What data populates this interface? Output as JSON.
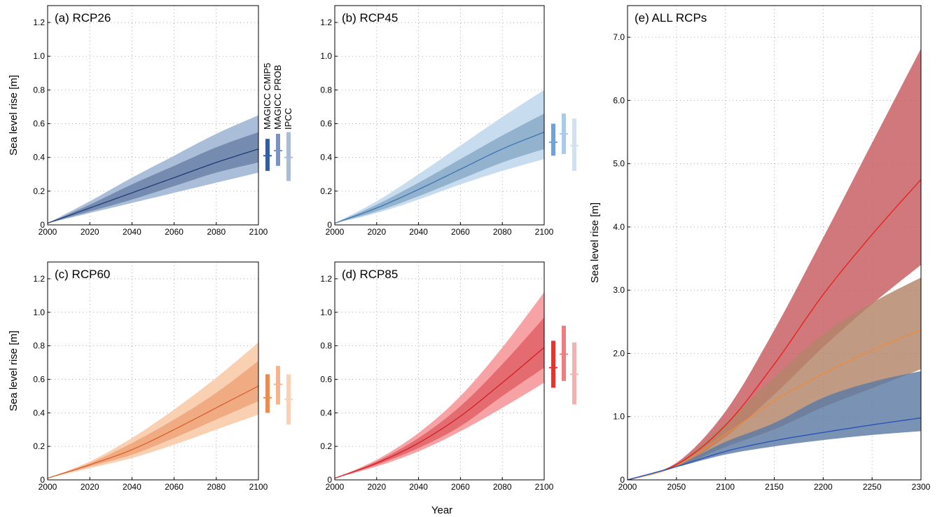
{
  "figure": {
    "shared_xlabel": "Year",
    "ylabel": "Sea level rise [m]",
    "legend_labels": [
      "MAGICC CMIP5",
      "MAGICC PROB",
      "IPCC"
    ]
  },
  "chart_data": [
    {
      "type": "area",
      "title": "(a) RCP26",
      "ylabel": "Sea level rise [m]",
      "xlim": [
        2000,
        2100
      ],
      "ylim": [
        0,
        1.3
      ],
      "xticks": [
        2000,
        2020,
        2040,
        2060,
        2080,
        2100
      ],
      "yticks": [
        0,
        0.2,
        0.4,
        0.6,
        0.8,
        1.0,
        1.2
      ],
      "grid": true,
      "colors": {
        "outer": "#abbed9",
        "inner": "#6b82a8",
        "median": "#1f3b78"
      },
      "x": [
        2000,
        2020,
        2040,
        2060,
        2080,
        2100
      ],
      "median": [
        0.01,
        0.1,
        0.19,
        0.28,
        0.37,
        0.45
      ],
      "inner_band": {
        "low": [
          0.01,
          0.08,
          0.15,
          0.23,
          0.31,
          0.37
        ],
        "high": [
          0.01,
          0.12,
          0.24,
          0.35,
          0.46,
          0.55
        ]
      },
      "outer_band": {
        "low": [
          0.01,
          0.07,
          0.13,
          0.19,
          0.25,
          0.31
        ],
        "high": [
          0.01,
          0.14,
          0.28,
          0.41,
          0.54,
          0.65
        ]
      },
      "bars": [
        {
          "label": "MAGICC CMIP5",
          "median": 0.41,
          "low": 0.32,
          "high": 0.51,
          "color": "#2e5ea6"
        },
        {
          "label": "MAGICC PROB",
          "median": 0.44,
          "low": 0.35,
          "high": 0.54,
          "color": "#7a94bf"
        },
        {
          "label": "IPCC",
          "median": 0.4,
          "low": 0.26,
          "high": 0.55,
          "color": "#a9bcd9"
        }
      ]
    },
    {
      "type": "area",
      "title": "(b) RCP45",
      "xlim": [
        2000,
        2100
      ],
      "ylim": [
        0,
        1.3
      ],
      "xticks": [
        2000,
        2020,
        2040,
        2060,
        2080,
        2100
      ],
      "yticks": [
        0,
        0.2,
        0.4,
        0.6,
        0.8,
        1.0,
        1.2
      ],
      "grid": true,
      "colors": {
        "outer": "#c8dcef",
        "inner": "#8aaac8",
        "median": "#3a75b5"
      },
      "x": [
        2000,
        2020,
        2040,
        2060,
        2080,
        2100
      ],
      "median": [
        0.01,
        0.1,
        0.21,
        0.33,
        0.45,
        0.55
      ],
      "inner_band": {
        "low": [
          0.01,
          0.08,
          0.17,
          0.27,
          0.37,
          0.45
        ],
        "high": [
          0.01,
          0.12,
          0.25,
          0.39,
          0.53,
          0.66
        ]
      },
      "outer_band": {
        "low": [
          0.01,
          0.07,
          0.15,
          0.24,
          0.32,
          0.39
        ],
        "high": [
          0.01,
          0.14,
          0.3,
          0.47,
          0.64,
          0.8
        ]
      },
      "bars": [
        {
          "label": "MAGICC CMIP5",
          "median": 0.49,
          "low": 0.41,
          "high": 0.6,
          "color": "#6fa3d6"
        },
        {
          "label": "MAGICC PROB",
          "median": 0.54,
          "low": 0.42,
          "high": 0.66,
          "color": "#a8cbea"
        },
        {
          "label": "IPCC",
          "median": 0.47,
          "low": 0.32,
          "high": 0.63,
          "color": "#cfe1f2"
        }
      ]
    },
    {
      "type": "area",
      "title": "(c) RCP60",
      "ylabel": "Sea level rise [m]",
      "xlim": [
        2000,
        2100
      ],
      "ylim": [
        0,
        1.3
      ],
      "xticks": [
        2000,
        2020,
        2040,
        2060,
        2080,
        2100
      ],
      "yticks": [
        0,
        0.2,
        0.4,
        0.6,
        0.8,
        1.0,
        1.2
      ],
      "grid": true,
      "colors": {
        "outer": "#fad0b3",
        "inner": "#eea57a",
        "median": "#d9602a"
      },
      "x": [
        2000,
        2020,
        2040,
        2060,
        2080,
        2100
      ],
      "median": [
        0.01,
        0.09,
        0.18,
        0.3,
        0.43,
        0.56
      ],
      "inner_band": {
        "low": [
          0.01,
          0.08,
          0.15,
          0.25,
          0.36,
          0.47
        ],
        "high": [
          0.01,
          0.1,
          0.22,
          0.36,
          0.52,
          0.71
        ]
      },
      "outer_band": {
        "low": [
          0.01,
          0.07,
          0.13,
          0.21,
          0.3,
          0.39
        ],
        "high": [
          0.01,
          0.11,
          0.25,
          0.42,
          0.61,
          0.82
        ]
      },
      "bars": [
        {
          "label": "MAGICC CMIP5",
          "median": 0.49,
          "low": 0.4,
          "high": 0.63,
          "color": "#f08a4b"
        },
        {
          "label": "MAGICC PROB",
          "median": 0.57,
          "low": 0.45,
          "high": 0.68,
          "color": "#f7b48c"
        },
        {
          "label": "IPCC",
          "median": 0.48,
          "low": 0.33,
          "high": 0.63,
          "color": "#fbd0b5"
        }
      ]
    },
    {
      "type": "area",
      "title": "(d) RCP85",
      "xlim": [
        2000,
        2100
      ],
      "ylim": [
        0,
        1.3
      ],
      "xticks": [
        2000,
        2020,
        2040,
        2060,
        2080,
        2100
      ],
      "yticks": [
        0,
        0.2,
        0.4,
        0.6,
        0.8,
        1.0,
        1.2
      ],
      "grid": true,
      "colors": {
        "outer": "#f7a3a6",
        "inner": "#e06266",
        "median": "#d21f26"
      },
      "x": [
        2000,
        2020,
        2040,
        2060,
        2080,
        2100
      ],
      "median": [
        0.01,
        0.1,
        0.22,
        0.38,
        0.58,
        0.79
      ],
      "inner_band": {
        "low": [
          0.01,
          0.09,
          0.19,
          0.32,
          0.5,
          0.67
        ],
        "high": [
          0.01,
          0.11,
          0.25,
          0.44,
          0.69,
          0.97
        ]
      },
      "outer_band": {
        "low": [
          0.01,
          0.08,
          0.17,
          0.29,
          0.43,
          0.58
        ],
        "high": [
          0.01,
          0.12,
          0.28,
          0.5,
          0.79,
          1.12
        ]
      },
      "bars": [
        {
          "label": "MAGICC CMIP5",
          "median": 0.67,
          "low": 0.55,
          "high": 0.83,
          "color": "#e8332c"
        },
        {
          "label": "MAGICC PROB",
          "median": 0.75,
          "low": 0.59,
          "high": 0.92,
          "color": "#ef7f7f"
        },
        {
          "label": "IPCC",
          "median": 0.63,
          "low": 0.45,
          "high": 0.82,
          "color": "#f6b0b0"
        }
      ]
    },
    {
      "type": "area",
      "title": "(e)  ALL RCPs",
      "ylabel": "Sea level rise [m]",
      "xlim": [
        2000,
        2300
      ],
      "ylim": [
        0,
        7.5
      ],
      "xticks": [
        2000,
        2050,
        2100,
        2150,
        2200,
        2250,
        2300
      ],
      "yticks": [
        0,
        1.0,
        2.0,
        3.0,
        4.0,
        5.0,
        6.0,
        7.0
      ],
      "ytick_labels": [
        "0",
        "1.0",
        "2.0",
        "3.0",
        "4.0",
        "5.0",
        "6.0",
        "7.0"
      ],
      "grid": true,
      "x": [
        2000,
        2050,
        2100,
        2150,
        2200,
        2250,
        2300
      ],
      "series": [
        {
          "color": "#c65a5f",
          "line": "#e8231f",
          "median": [
            0.0,
            0.24,
            0.86,
            1.83,
            2.93,
            3.88,
            4.75
          ],
          "low": [
            0.0,
            0.21,
            0.68,
            1.35,
            2.1,
            2.78,
            3.4
          ],
          "high": [
            0.0,
            0.27,
            1.08,
            2.37,
            3.83,
            5.33,
            6.82
          ]
        },
        {
          "color": "#b38469",
          "line": "#ee8a3c",
          "median": [
            0.0,
            0.22,
            0.72,
            1.25,
            1.68,
            2.05,
            2.37
          ],
          "low": [
            0.0,
            0.2,
            0.52,
            0.8,
            1.15,
            1.45,
            1.75
          ],
          "high": [
            0.0,
            0.25,
            0.9,
            1.62,
            2.3,
            2.8,
            3.2
          ]
        },
        {
          "color": "#5d7aa3",
          "line": "#2a55b6",
          "median": [
            0.0,
            0.21,
            0.45,
            0.62,
            0.75,
            0.87,
            0.98
          ],
          "low": [
            0.0,
            0.2,
            0.4,
            0.53,
            0.63,
            0.71,
            0.77
          ],
          "high": [
            0.0,
            0.23,
            0.6,
            0.9,
            1.3,
            1.55,
            1.72
          ]
        }
      ]
    }
  ]
}
